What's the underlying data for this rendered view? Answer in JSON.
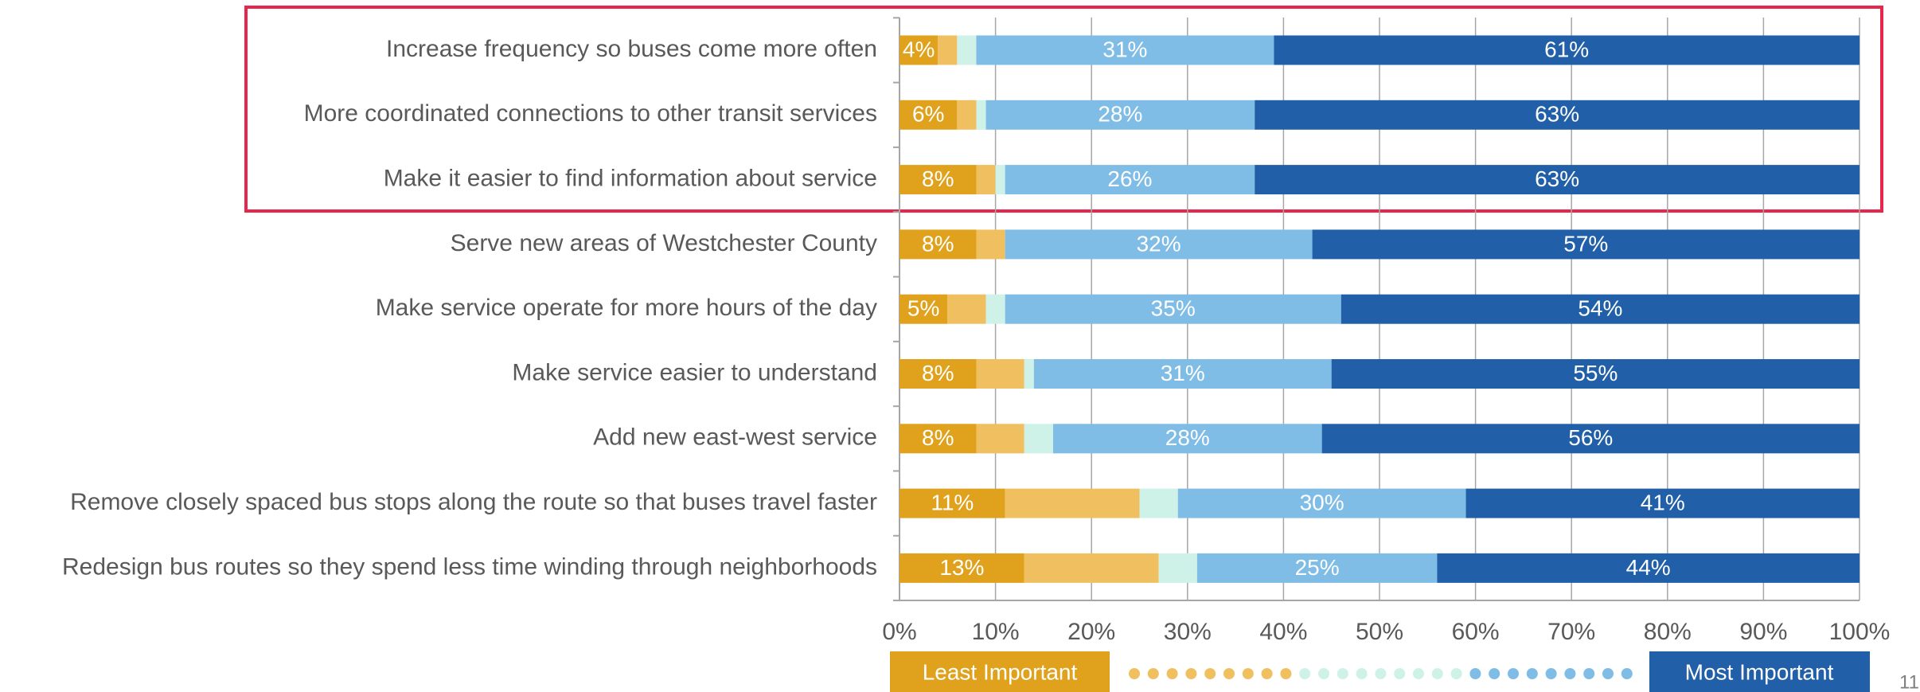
{
  "chart_data": {
    "type": "stacked-barh",
    "categories": [
      "Increase frequency so buses come more often",
      "More coordinated connections to other transit services",
      "Make it easier to find information about service",
      "Serve new areas of Westchester County",
      "Make service operate for more hours of the day",
      "Make service easier to understand",
      "Add new east-west service",
      "Remove closely spaced bus stops along the route so that buses travel faster",
      "Redesign bus routes so they spend less time winding through neighborhoods"
    ],
    "series": [
      {
        "name": "Least Important",
        "color": "#e0a21c",
        "values": [
          4,
          6,
          8,
          8,
          5,
          8,
          8,
          11,
          13
        ],
        "value_labels": [
          "4%",
          "6%",
          "8%",
          "8%",
          "5%",
          "8%",
          "8%",
          "11%",
          "13%"
        ]
      },
      {
        "color": "#f0c060",
        "values": [
          2,
          2,
          2,
          3,
          4,
          5,
          5,
          14,
          14
        ]
      },
      {
        "color": "#cff2e8",
        "values": [
          2,
          1,
          1,
          0,
          2,
          1,
          3,
          4,
          4
        ]
      },
      {
        "color": "#7fbce6",
        "values": [
          31,
          28,
          26,
          32,
          35,
          31,
          28,
          30,
          25
        ],
        "value_labels": [
          "31%",
          "28%",
          "26%",
          "32%",
          "35%",
          "31%",
          "28%",
          "30%",
          "25%"
        ]
      },
      {
        "name": "Most Important",
        "color": "#2160a8",
        "values": [
          61,
          63,
          63,
          57,
          54,
          55,
          56,
          41,
          44
        ],
        "value_labels": [
          "61%",
          "63%",
          "63%",
          "57%",
          "54%",
          "55%",
          "56%",
          "41%",
          "44%"
        ]
      }
    ],
    "xlim": [
      0,
      100
    ],
    "xticks": [
      {
        "value": 0,
        "label": "0%"
      },
      {
        "value": 10,
        "label": "10%"
      },
      {
        "value": 20,
        "label": "20%"
      },
      {
        "value": 30,
        "label": "30%"
      },
      {
        "value": 40,
        "label": "40%"
      },
      {
        "value": 50,
        "label": "50%"
      },
      {
        "value": 60,
        "label": "60%"
      },
      {
        "value": 70,
        "label": "70%"
      },
      {
        "value": 80,
        "label": "80%"
      },
      {
        "value": 90,
        "label": "90%"
      },
      {
        "value": 100,
        "label": "100%"
      }
    ],
    "grid": true,
    "page_number": "11"
  }
}
